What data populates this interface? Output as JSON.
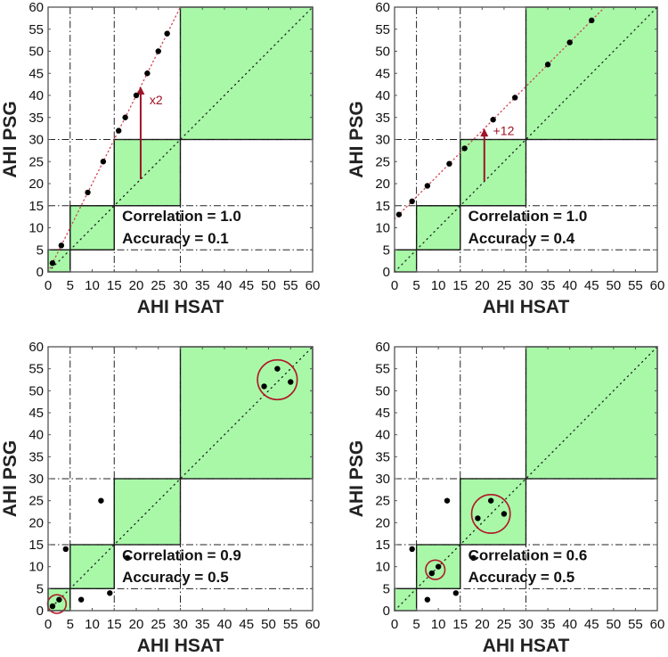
{
  "figure": {
    "layout": "2x2 grid of scatter plots"
  },
  "chart_data": [
    {
      "type": "scatter",
      "panel": "top-left",
      "xlabel": "AHI  HSAT",
      "ylabel": "AHI  PSG",
      "xlim": [
        0,
        60
      ],
      "ylim": [
        0,
        60
      ],
      "xticks": [
        0,
        5,
        10,
        15,
        20,
        25,
        30,
        35,
        40,
        45,
        50,
        55,
        60
      ],
      "yticks": [
        0,
        5,
        10,
        15,
        20,
        25,
        30,
        35,
        40,
        45,
        50,
        55,
        60
      ],
      "severity_thresholds": [
        5,
        15,
        30
      ],
      "agreement_boxes": [
        [
          0,
          5
        ],
        [
          5,
          15
        ],
        [
          15,
          30
        ],
        [
          30,
          60
        ]
      ],
      "points": [
        [
          1,
          2
        ],
        [
          3,
          6
        ],
        [
          9,
          18
        ],
        [
          12.5,
          25
        ],
        [
          16,
          32
        ],
        [
          17.5,
          35
        ],
        [
          20,
          40
        ],
        [
          22.5,
          45
        ],
        [
          25,
          50
        ],
        [
          27,
          54
        ]
      ],
      "fit_line": {
        "type": "multiplicative",
        "slope": 2,
        "intercept": 0
      },
      "arrow": {
        "x": 21,
        "y_from": 21,
        "y_to": 42,
        "label": "x2",
        "label_pos": [
          23,
          38
        ]
      },
      "annotations": {
        "correlation": "Correlation = 1.0",
        "accuracy": "Accuracy = 0.1"
      },
      "circles": []
    },
    {
      "type": "scatter",
      "panel": "top-right",
      "xlabel": "AHI  HSAT",
      "ylabel": "AHI  PSG",
      "xlim": [
        0,
        60
      ],
      "ylim": [
        0,
        60
      ],
      "xticks": [
        0,
        5,
        10,
        15,
        20,
        25,
        30,
        35,
        40,
        45,
        50,
        55,
        60
      ],
      "yticks": [
        0,
        5,
        10,
        15,
        20,
        25,
        30,
        35,
        40,
        45,
        50,
        55,
        60
      ],
      "severity_thresholds": [
        5,
        15,
        30
      ],
      "agreement_boxes": [
        [
          0,
          5
        ],
        [
          5,
          15
        ],
        [
          15,
          30
        ],
        [
          30,
          60
        ]
      ],
      "points": [
        [
          1,
          13
        ],
        [
          4,
          16
        ],
        [
          7.5,
          19.5
        ],
        [
          12.5,
          24.5
        ],
        [
          16,
          28
        ],
        [
          22.5,
          34.5
        ],
        [
          27.5,
          39.5
        ],
        [
          35,
          47
        ],
        [
          40,
          52
        ],
        [
          45,
          57
        ]
      ],
      "fit_line": {
        "type": "additive",
        "slope": 1,
        "intercept": 12
      },
      "arrow": {
        "x": 20.5,
        "y_from": 20.5,
        "y_to": 32.5,
        "label": "+12",
        "label_pos": [
          22.5,
          31
        ]
      },
      "annotations": {
        "correlation": "Correlation = 1.0",
        "accuracy": "Accuracy = 0.4"
      },
      "circles": []
    },
    {
      "type": "scatter",
      "panel": "bottom-left",
      "xlabel": "AHI  HSAT",
      "ylabel": "AHI  PSG",
      "xlim": [
        0,
        60
      ],
      "ylim": [
        0,
        60
      ],
      "xticks": [
        0,
        5,
        10,
        15,
        20,
        25,
        30,
        35,
        40,
        45,
        50,
        55,
        60
      ],
      "yticks": [
        0,
        5,
        10,
        15,
        20,
        25,
        30,
        35,
        40,
        45,
        50,
        55,
        60
      ],
      "severity_thresholds": [
        5,
        15,
        30
      ],
      "agreement_boxes": [
        [
          0,
          5
        ],
        [
          5,
          15
        ],
        [
          15,
          30
        ],
        [
          30,
          60
        ]
      ],
      "points": [
        [
          1,
          1
        ],
        [
          2.5,
          2.5
        ],
        [
          4,
          14
        ],
        [
          7.5,
          2.5
        ],
        [
          12,
          25
        ],
        [
          14,
          4
        ],
        [
          18,
          12
        ],
        [
          49,
          51
        ],
        [
          52,
          55
        ],
        [
          55,
          52
        ]
      ],
      "fit_line": null,
      "arrow": null,
      "annotations": {
        "correlation": "Correlation = 0.9",
        "accuracy": "Accuracy = 0.5"
      },
      "circles": [
        {
          "cx": 2,
          "cy": 1.5,
          "r": 2.1
        },
        {
          "cx": 52,
          "cy": 52.5,
          "r": 4.5
        }
      ]
    },
    {
      "type": "scatter",
      "panel": "bottom-right",
      "xlabel": "AHI  HSAT",
      "ylabel": "AHI  PSG",
      "xlim": [
        0,
        60
      ],
      "ylim": [
        0,
        60
      ],
      "xticks": [
        0,
        5,
        10,
        15,
        20,
        25,
        30,
        35,
        40,
        45,
        50,
        55,
        60
      ],
      "yticks": [
        0,
        5,
        10,
        15,
        20,
        25,
        30,
        35,
        40,
        45,
        50,
        55,
        60
      ],
      "severity_thresholds": [
        5,
        15,
        30
      ],
      "agreement_boxes": [
        [
          0,
          5
        ],
        [
          5,
          15
        ],
        [
          15,
          30
        ],
        [
          30,
          60
        ]
      ],
      "points": [
        [
          4,
          14
        ],
        [
          7.5,
          2.5
        ],
        [
          8.5,
          8.5
        ],
        [
          10,
          10
        ],
        [
          12,
          25
        ],
        [
          14,
          4
        ],
        [
          18,
          12
        ],
        [
          19,
          21
        ],
        [
          22,
          25
        ],
        [
          25,
          22
        ]
      ],
      "fit_line": null,
      "arrow": null,
      "annotations": {
        "correlation": "Correlation = 0.6",
        "accuracy": "Accuracy = 0.5"
      },
      "circles": [
        {
          "cx": 9.3,
          "cy": 9.3,
          "r": 2.2
        },
        {
          "cx": 22,
          "cy": 22,
          "r": 4.4
        }
      ]
    }
  ],
  "colors": {
    "box_fill": "#a8f8a8",
    "box_stroke": "#111111",
    "threshold_line": "#222222",
    "axis": "#555555",
    "point": "#000000",
    "identity_line": "#222222",
    "fit_line": "#d04050",
    "arrow": "#a01428",
    "circle": "#b01a28",
    "annotation_text": "#a01020"
  }
}
